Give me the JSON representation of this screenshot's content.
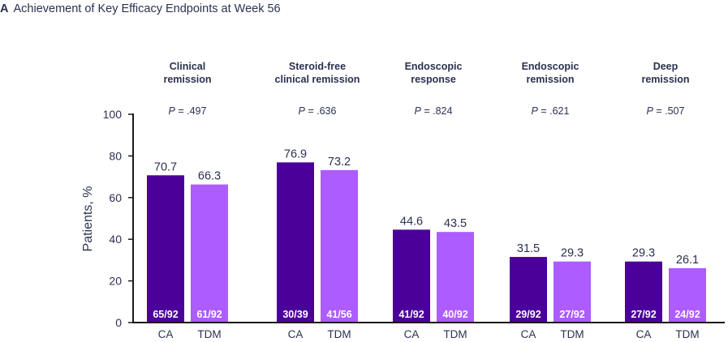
{
  "panel": {
    "letter": "A",
    "title": "Achievement of Key Efficacy Endpoints at Week 56"
  },
  "chart_data": {
    "type": "bar",
    "title": "Achievement of Key Efficacy Endpoints at Week 56",
    "xlabel": "",
    "ylabel": "Patients, %",
    "ylim": [
      0,
      100
    ],
    "yticks": [
      0,
      20,
      40,
      60,
      80,
      100
    ],
    "grid": false,
    "legend": "none",
    "colors": {
      "CA": "#4b0099",
      "TDM": "#ad5cff"
    },
    "series_names": [
      "CA",
      "TDM"
    ],
    "groups": [
      {
        "title_lines": [
          "Clinical",
          "remission"
        ],
        "p_value": ".497",
        "bars": [
          {
            "label": "CA",
            "value": 70.7,
            "value_label": "70.7",
            "count": "65/92"
          },
          {
            "label": "TDM",
            "value": 66.3,
            "value_label": "66.3",
            "count": "61/92"
          }
        ]
      },
      {
        "title_lines": [
          "Steroid-free",
          "clinical remission"
        ],
        "p_value": ".636",
        "bars": [
          {
            "label": "CA",
            "value": 76.9,
            "value_label": "76.9",
            "count": "30/39"
          },
          {
            "label": "TDM",
            "value": 73.2,
            "value_label": "73.2",
            "count": "41/56"
          }
        ]
      },
      {
        "title_lines": [
          "Endoscopic",
          "response"
        ],
        "p_value": ".824",
        "bars": [
          {
            "label": "CA",
            "value": 44.6,
            "value_label": "44.6",
            "count": "41/92"
          },
          {
            "label": "TDM",
            "value": 43.5,
            "value_label": "43.5",
            "count": "40/92"
          }
        ]
      },
      {
        "title_lines": [
          "Endoscopic",
          "remission"
        ],
        "p_value": ".621",
        "bars": [
          {
            "label": "CA",
            "value": 31.5,
            "value_label": "31.5",
            "count": "29/92"
          },
          {
            "label": "TDM",
            "value": 29.3,
            "value_label": "29.3",
            "count": "27/92"
          }
        ]
      },
      {
        "title_lines": [
          "Deep",
          "remission"
        ],
        "p_value": ".507",
        "bars": [
          {
            "label": "CA",
            "value": 29.3,
            "value_label": "29.3",
            "count": "27/92"
          },
          {
            "label": "TDM",
            "value": 26.1,
            "value_label": "26.1",
            "count": "24/92"
          }
        ]
      }
    ]
  }
}
